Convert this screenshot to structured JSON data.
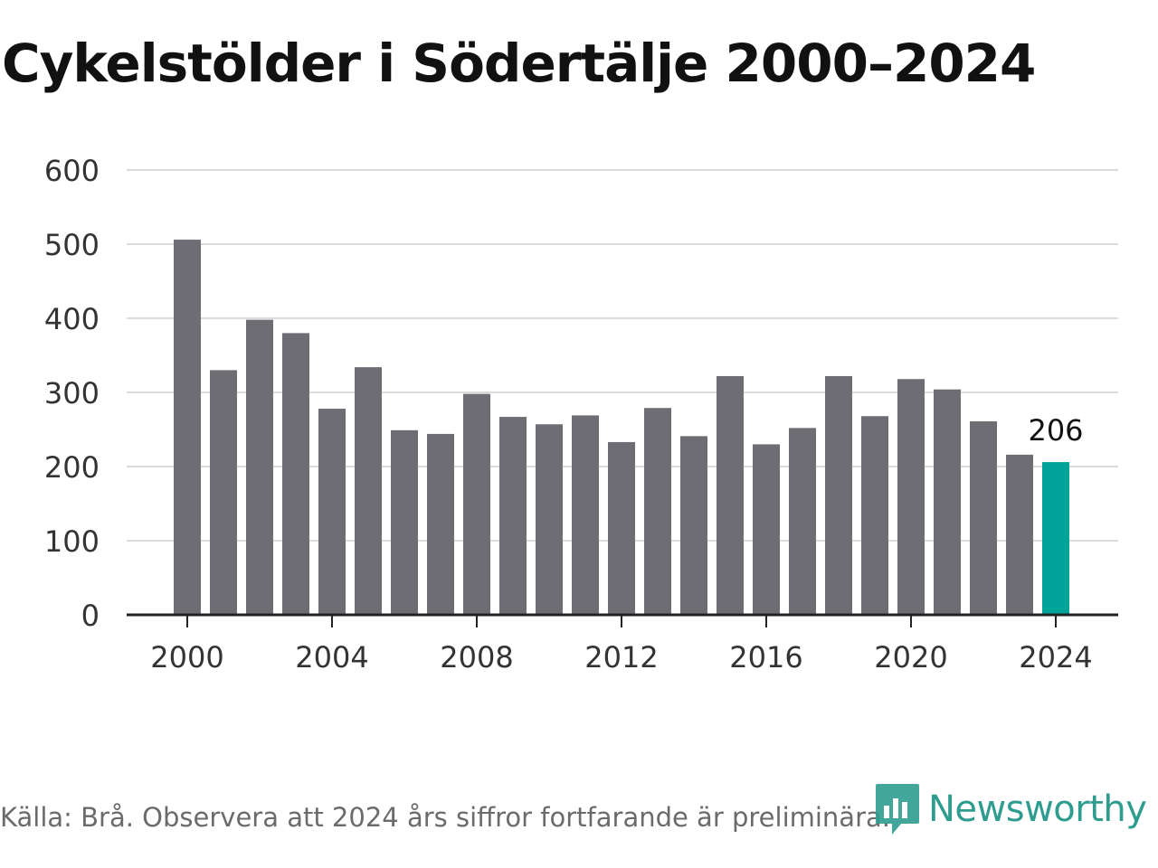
{
  "title": "Cykelstölder i Södertälje 2000–2024",
  "source": "Källa: Brå. Observera att 2024 års siffror fortfarande är preliminära.",
  "brand": "Newsworthy",
  "colors": {
    "bar": "#6e6d73",
    "highlight": "#00a398",
    "grid": "#dcdcdc",
    "axis": "#222222",
    "brand": "#2e9c8f"
  },
  "chart_data": {
    "type": "bar",
    "title": "Cykelstölder i Södertälje 2000–2024",
    "xlabel": "",
    "ylabel": "",
    "ylim": [
      0,
      600
    ],
    "yticks": [
      0,
      100,
      200,
      300,
      400,
      500,
      600
    ],
    "xticks": [
      "2000",
      "2004",
      "2008",
      "2012",
      "2016",
      "2020",
      "2024"
    ],
    "categories": [
      "2000",
      "2001",
      "2002",
      "2003",
      "2004",
      "2005",
      "2006",
      "2007",
      "2008",
      "2009",
      "2010",
      "2011",
      "2012",
      "2013",
      "2014",
      "2015",
      "2016",
      "2017",
      "2018",
      "2019",
      "2020",
      "2021",
      "2022",
      "2023",
      "2024"
    ],
    "values": [
      506,
      330,
      398,
      380,
      278,
      334,
      249,
      244,
      298,
      267,
      257,
      269,
      233,
      279,
      241,
      322,
      230,
      252,
      322,
      268,
      318,
      304,
      261,
      216,
      206
    ],
    "highlight_index": 24,
    "data_labels": [
      {
        "category": "2024",
        "text": "206"
      }
    ],
    "grid": true,
    "legend": "none"
  }
}
